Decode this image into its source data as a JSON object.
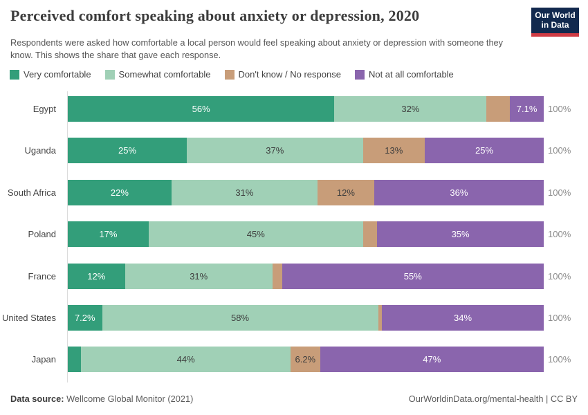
{
  "header": {
    "title": "Perceived comfort speaking about anxiety or depression, 2020",
    "subtitle": "Respondents were asked how comfortable a local person would feel speaking about anxiety or depression with someone they know. This shows the share that gave each response.",
    "logo": {
      "line1": "Our World",
      "line2": "in Data",
      "bg_color": "#12294e",
      "accent_color": "#cf3b44"
    }
  },
  "chart_data": {
    "type": "bar",
    "orientation": "horizontal-stacked",
    "title": "Perceived comfort speaking about anxiety or depression, 2020",
    "categories": [
      "Egypt",
      "Uganda",
      "South Africa",
      "Poland",
      "France",
      "United States",
      "Japan"
    ],
    "series": [
      {
        "name": "Very comfortable",
        "color": "#339e7a",
        "label_text_color": "#ffffff",
        "values": [
          56,
          25,
          22,
          17,
          12,
          7.2,
          2.8
        ],
        "labels": [
          "56%",
          "25%",
          "22%",
          "17%",
          "12%",
          "7.2%",
          ""
        ]
      },
      {
        "name": "Somewhat comfortable",
        "color": "#a0d0b6",
        "label_text_color": "#3d3d3d",
        "values": [
          32,
          37,
          31,
          45,
          31,
          58,
          44
        ],
        "labels": [
          "32%",
          "37%",
          "31%",
          "45%",
          "31%",
          "58%",
          "44%"
        ]
      },
      {
        "name": "Don't know / No response",
        "color": "#c89d79",
        "label_text_color": "#3d3d3d",
        "values": [
          4.9,
          13,
          12,
          3,
          2,
          0.8,
          6.2
        ],
        "labels": [
          "",
          "13%",
          "12%",
          "",
          "",
          "",
          "6.2%"
        ]
      },
      {
        "name": "Not at all comfortable",
        "color": "#8a65ad",
        "label_text_color": "#ffffff",
        "values": [
          7.1,
          25,
          36,
          35,
          55,
          34,
          47
        ],
        "labels": [
          "7.1%",
          "25%",
          "36%",
          "35%",
          "55%",
          "34%",
          "47%"
        ]
      }
    ],
    "stack_total_label": "100%",
    "xlim": [
      0,
      100
    ],
    "grid": false,
    "legend_position": "top"
  },
  "footer": {
    "datasource_prefix": "Data source:",
    "datasource_text": " Wellcome Global Monitor (2021)",
    "link_text": "OurWorldinData.org/mental-health | CC BY"
  }
}
